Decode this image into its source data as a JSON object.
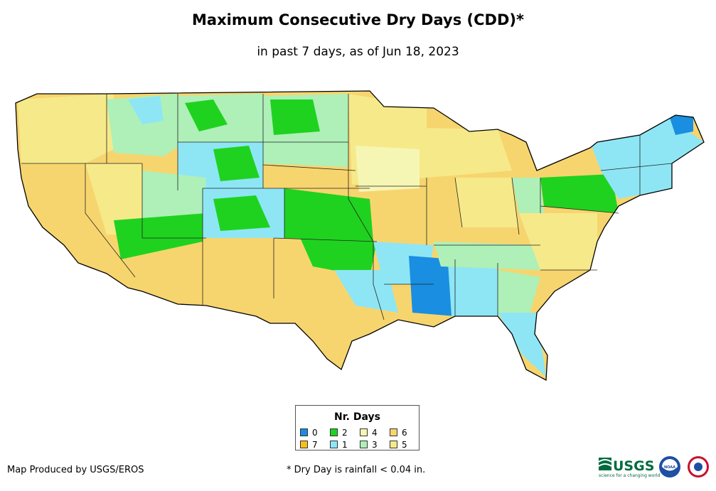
{
  "header": {
    "title": "Maximum Consecutive Dry Days (CDD)*",
    "subtitle": "in past 7 days, as of Jun 18, 2023"
  },
  "legend": {
    "title": "Nr. Days",
    "items": [
      {
        "label": "0",
        "color": "#1a8ee0"
      },
      {
        "label": "2",
        "color": "#1fd21f"
      },
      {
        "label": "4",
        "color": "#f6f6b4"
      },
      {
        "label": "6",
        "color": "#f7d56e"
      },
      {
        "label": "7",
        "color": "#f5bf1e"
      },
      {
        "label": "1",
        "color": "#8ee6f5"
      },
      {
        "label": "3",
        "color": "#aef0b8"
      },
      {
        "label": "5",
        "color": "#f6e98a"
      }
    ]
  },
  "footer": {
    "credit": "Map Produced by USGS/EROS",
    "footnote": "* Dry Day is rainfall < 0.04 in.",
    "logo_usgs": "USGS",
    "logo_usgs_tagline": "science for a changing world",
    "logo_noaa": "NOAA"
  },
  "colors": {
    "days_0": "#1a8ee0",
    "days_1": "#8ee6f5",
    "days_2": "#1fd21f",
    "days_3": "#aef0b8",
    "days_4": "#f6f6b4",
    "days_5": "#f6e98a",
    "days_6": "#f7d56e",
    "days_7": "#f5bf1e",
    "usgs_green": "#006b3f"
  }
}
